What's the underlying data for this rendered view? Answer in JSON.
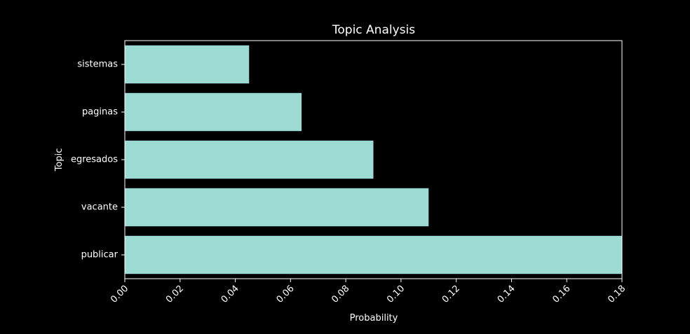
{
  "chart_data": {
    "type": "bar",
    "orientation": "horizontal",
    "title": "Topic Analysis",
    "xlabel": "Probability",
    "ylabel": "Topic",
    "categories": [
      "sistemas",
      "paginas",
      "egresados",
      "vacante",
      "publicar"
    ],
    "values": [
      0.045,
      0.064,
      0.09,
      0.11,
      0.18
    ],
    "xlim": [
      0,
      0.18
    ],
    "xticks": [
      "0.00",
      "0.02",
      "0.04",
      "0.06",
      "0.08",
      "0.10",
      "0.12",
      "0.14",
      "0.16",
      "0.18"
    ],
    "grid": false,
    "legend": "none",
    "colors": {
      "background": "#000000",
      "bar": "#9ddad4",
      "axes": "#ffffff",
      "text": "#ffffff"
    }
  }
}
